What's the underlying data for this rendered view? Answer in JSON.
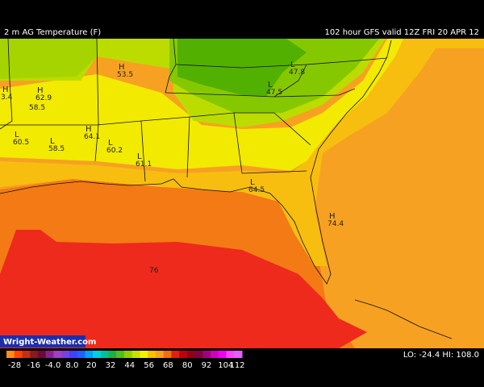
{
  "header": {
    "title": "2 m AG Temperature (F)",
    "run": "102 hour GFS valid 12Z FRI 20 APR 12"
  },
  "map": {
    "centers": [
      {
        "symbol": "H",
        "value": "3.4"
      },
      {
        "symbol": "H",
        "value": "62.9"
      },
      {
        "symbol": "H",
        "value": "53.5"
      },
      {
        "symbol": "H",
        "value": "64.1"
      },
      {
        "symbol": "L",
        "value": "60.5"
      },
      {
        "symbol": "L",
        "value": "58.5"
      },
      {
        "symbol": "L",
        "value": "60.2"
      },
      {
        "symbol": "L",
        "value": "61.1"
      },
      {
        "symbol": "L",
        "value": "64.5"
      },
      {
        "symbol": "H",
        "value": "74.4"
      },
      {
        "symbol": "L",
        "value": "47.8"
      },
      {
        "symbol": "L",
        "value": "47.5"
      }
    ],
    "values": [
      "58.5",
      "76"
    ]
  },
  "footer": {
    "brand": "Wright-Weather.com",
    "scale": [
      "-28",
      "-16",
      "-4.0",
      "8.0",
      "20",
      "32",
      "44",
      "56",
      "68",
      "80",
      "92",
      "104",
      "112"
    ],
    "range": "LO: -24.4  HI: 108.0"
  }
}
